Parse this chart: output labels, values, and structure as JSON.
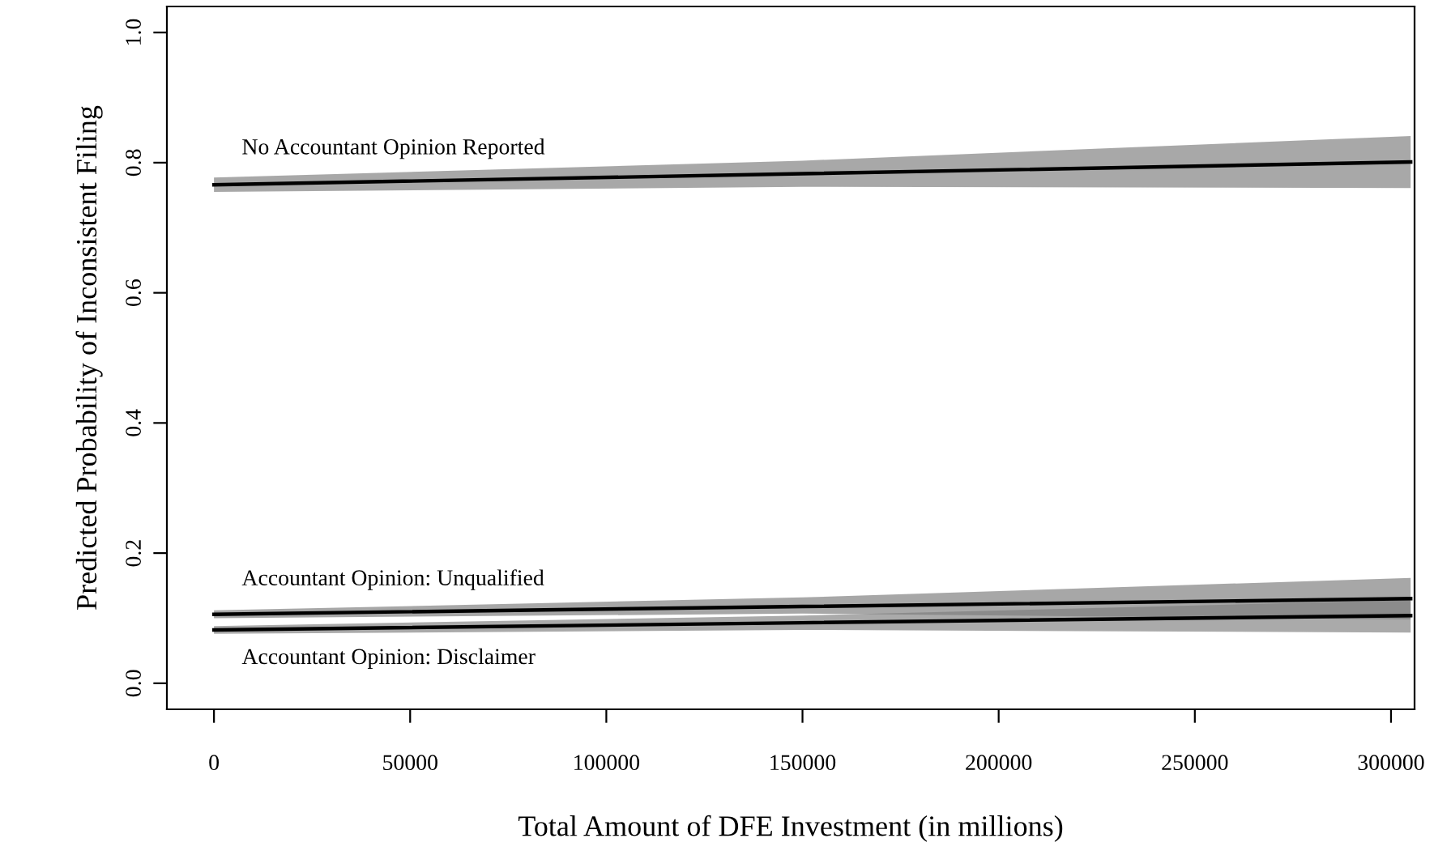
{
  "chart_data": {
    "type": "line",
    "xlabel": "Total Amount of DFE Investment (in millions)",
    "ylabel": "Predicted Probability of Inconsistent Filing",
    "x": [
      0,
      150000,
      305000
    ],
    "series": [
      {
        "name": "No Accountant Opinion Reported",
        "color": "#000000",
        "values": [
          0.766,
          0.783,
          0.801
        ],
        "lower": [
          0.755,
          0.763,
          0.761
        ],
        "upper": [
          0.777,
          0.803,
          0.841
        ]
      },
      {
        "name": "Accountant Opinion: Unqualified",
        "color": "#000000",
        "values": [
          0.106,
          0.118,
          0.13
        ],
        "lower": [
          0.1,
          0.107,
          0.098
        ],
        "upper": [
          0.112,
          0.132,
          0.162
        ]
      },
      {
        "name": "Accountant Opinion: Disclaimer",
        "color": "#000000",
        "values": [
          0.082,
          0.093,
          0.104
        ],
        "lower": [
          0.076,
          0.082,
          0.078
        ],
        "upper": [
          0.088,
          0.104,
          0.128
        ]
      }
    ],
    "xlim": [
      -12000,
      306000
    ],
    "ylim": [
      -0.04,
      1.04
    ],
    "xticks": [
      0,
      50000,
      100000,
      150000,
      200000,
      250000,
      300000
    ],
    "yticks": [
      {
        "value": 0,
        "label": "0.0"
      },
      {
        "value": 0.2,
        "label": "0.2"
      },
      {
        "value": 0.4,
        "label": "0.4"
      },
      {
        "value": 0.6,
        "label": "0.6"
      },
      {
        "value": 0.8,
        "label": "0.8"
      },
      {
        "value": 1,
        "label": "1.0"
      }
    ],
    "grid": false,
    "legend": false,
    "marker": "none",
    "line_style": "solid"
  }
}
